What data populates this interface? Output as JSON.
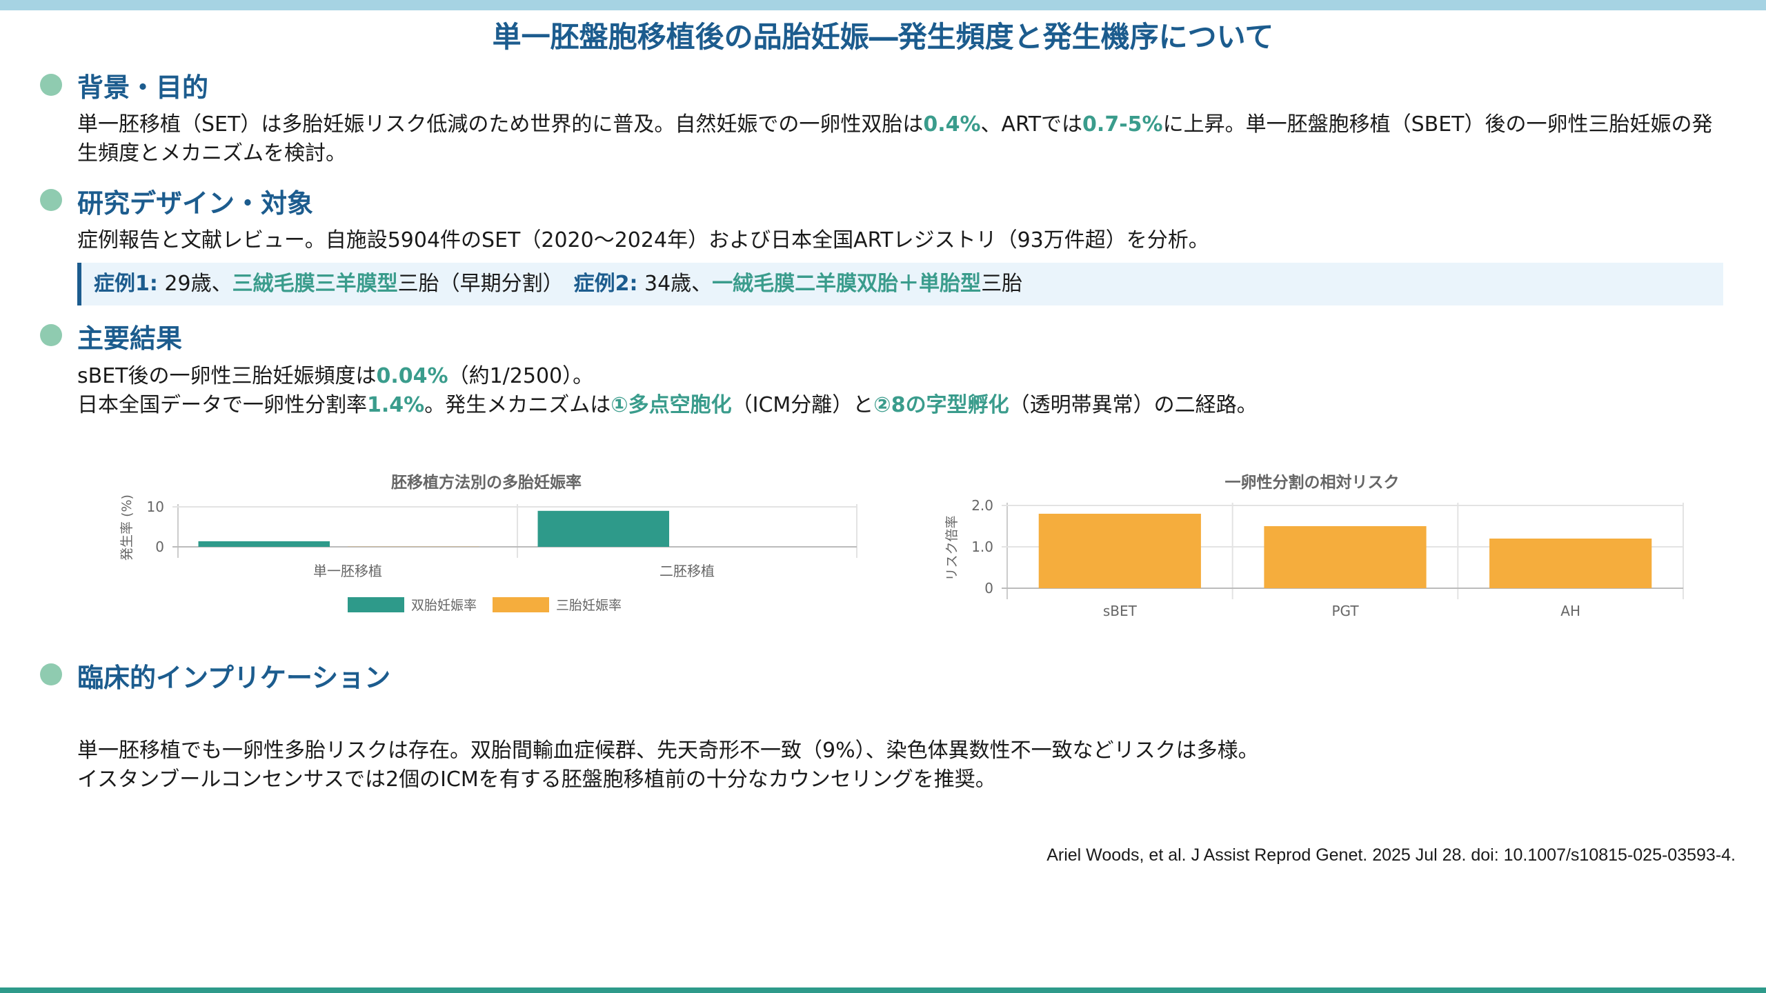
{
  "title": "単一胚盤胞移植後の品胎妊娠―発生頻度と発生機序について",
  "sections": {
    "background": {
      "heading": "背景・目的",
      "text": [
        {
          "t": "単一胚移植（SET）は多胎妊娠リスク低減のため世界的に普及。自然妊娠での一卵性双胎は"
        },
        {
          "t": "0.4%",
          "hl": true
        },
        {
          "t": "、ARTでは"
        },
        {
          "t": "0.7-5%",
          "hl": true
        },
        {
          "t": "に上昇。単一胚盤胞移植（SBET）後の一卵性三胎妊娠の発生頻度とメカニズムを検討。"
        }
      ]
    },
    "design": {
      "heading": "研究デザイン・対象",
      "text": [
        {
          "t": "症例報告と文献レビュー。自施設5904件のSET（2020〜2024年）および日本全国ARTレジストリ（93万件超）を分析。"
        }
      ],
      "cases": [
        {
          "t": "症例1:",
          "label": true
        },
        {
          "t": " 29歳、"
        },
        {
          "t": "三絨毛膜三羊膜型",
          "hl": true
        },
        {
          "t": "三胎（早期分割）　"
        },
        {
          "t": "症例2:",
          "label": true
        },
        {
          "t": " 34歳、"
        },
        {
          "t": "一絨毛膜二羊膜双胎＋単胎型",
          "hl": true
        },
        {
          "t": "三胎"
        }
      ]
    },
    "results": {
      "heading": "主要結果",
      "line1": [
        {
          "t": "sBET後の一卵性三胎妊娠頻度は"
        },
        {
          "t": "0.04%",
          "hl": true
        },
        {
          "t": "（約1/2500）。"
        }
      ],
      "line2": [
        {
          "t": "日本全国データで一卵性分割率"
        },
        {
          "t": "1.4%",
          "hl": true
        },
        {
          "t": "。発生メカニズムは"
        },
        {
          "t": "①多点空胞化",
          "hl": true
        },
        {
          "t": "（ICM分離）と"
        },
        {
          "t": "②8の字型孵化",
          "hl": true
        },
        {
          "t": "（透明帯異常）の二経路。"
        }
      ]
    },
    "implications": {
      "heading": "臨床的インプリケーション",
      "line1": "単一胚移植でも一卵性多胎リスクは存在。双胎間輸血症候群、先天奇形不一致（9%）、染色体異数性不一致などリスクは多様。",
      "line2": "イスタンブールコンセンサスでは2個のICMを有する胚盤胞移植前の十分なカウンセリングを推奨。"
    }
  },
  "citation": "Ariel Woods, et al. J Assist Reprod Genet. 2025 Jul 28.  doi: 10.1007/s10815-025-03593-4.",
  "colors": {
    "twin": "#2e9a8a",
    "triplet": "#f5ad3d",
    "risk": "#f5ad3d",
    "heading": "#1c5c8e",
    "highlight": "#3a9c8c"
  },
  "chart_data": [
    {
      "type": "bar",
      "title": "胚移植方法別の多胎妊娠率",
      "ylabel": "発生率 (%)",
      "xlabel": "",
      "categories": [
        "単一胚移植",
        "二胚移植"
      ],
      "series": [
        {
          "name": "双胎妊娠率",
          "values": [
            1.4,
            9.0
          ],
          "color": "#2e9a8a"
        },
        {
          "name": "三胎妊娠率",
          "values": [
            0.04,
            0.0
          ],
          "color": "#f5ad3d"
        }
      ],
      "ylim": [
        0,
        10
      ],
      "yticks": [
        0,
        10
      ],
      "grid": true,
      "legend": "bottom"
    },
    {
      "type": "bar",
      "title": "一卵性分割の相対リスク",
      "ylabel": "リスク倍率",
      "xlabel": "",
      "categories": [
        "sBET",
        "PGT",
        "AH"
      ],
      "series": [
        {
          "values": [
            1.8,
            1.5,
            1.2
          ],
          "color": "#f5ad3d"
        }
      ],
      "ylim": [
        0,
        2.0
      ],
      "yticks": [
        "0",
        "1.0",
        "2.0"
      ],
      "grid": true,
      "legend": "none"
    }
  ]
}
